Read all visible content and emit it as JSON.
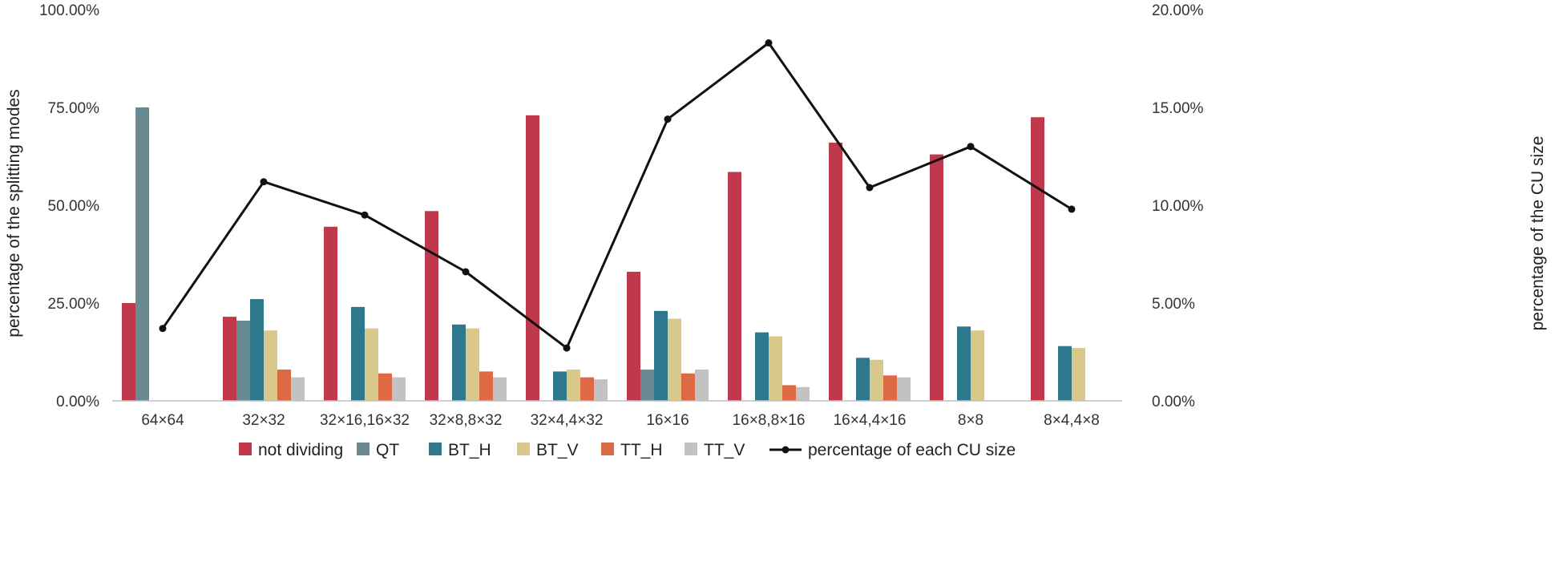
{
  "chart_data": {
    "type": "bar",
    "title": "",
    "xlabel": "",
    "ylabel": "percentage of the splitting modes",
    "y2label": "percentage of the CU size",
    "ylim": [
      0,
      100
    ],
    "y2lim": [
      0,
      20
    ],
    "yticks": [
      "0.00%",
      "25.00%",
      "50.00%",
      "75.00%",
      "100.00%"
    ],
    "y2ticks": [
      "0.00%",
      "5.00%",
      "10.00%",
      "15.00%",
      "20.00%"
    ],
    "grid": false,
    "legend_position": "bottom",
    "categories": [
      "64×64",
      "32×32",
      "32×16,16×32",
      "32×8,8×32",
      "32×4,4×32",
      "16×16",
      "16×8,8×16",
      "16×4,4×16",
      "8×8",
      "8×4,4×8"
    ],
    "series": [
      {
        "name": "not dividing",
        "color": "#c0384c",
        "values": [
          25.0,
          21.5,
          44.5,
          48.5,
          73.0,
          33.0,
          58.5,
          66.0,
          63.0,
          72.5
        ]
      },
      {
        "name": "QT",
        "color": "#6a8a93",
        "values": [
          75.0,
          20.5,
          0,
          0,
          0,
          8.0,
          0,
          0,
          0,
          0
        ]
      },
      {
        "name": "BT_H",
        "color": "#2e788e",
        "values": [
          0,
          26.0,
          24.0,
          19.5,
          7.5,
          23.0,
          17.5,
          11.0,
          19.0,
          14.0
        ]
      },
      {
        "name": "BT_V",
        "color": "#d8c88a",
        "values": [
          0,
          18.0,
          18.5,
          18.5,
          8.0,
          21.0,
          16.5,
          10.5,
          18.0,
          13.5
        ]
      },
      {
        "name": "TT_H",
        "color": "#dd6a44",
        "values": [
          0,
          8.0,
          7.0,
          7.5,
          6.0,
          7.0,
          4.0,
          6.5,
          0,
          0
        ]
      },
      {
        "name": "TT_V",
        "color": "#c2c2c2",
        "values": [
          0,
          6.0,
          6.0,
          6.0,
          5.5,
          8.0,
          3.5,
          6.0,
          0,
          0
        ]
      }
    ],
    "line": {
      "name": "percentage of each CU size",
      "color": "#111111",
      "axis": "right",
      "values": [
        3.7,
        11.2,
        9.5,
        6.6,
        2.7,
        14.4,
        18.3,
        10.9,
        13.0,
        9.8
      ]
    }
  }
}
